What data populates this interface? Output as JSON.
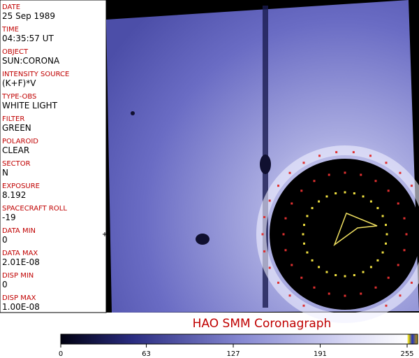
{
  "panel": {
    "fields": [
      {
        "label": "DATE",
        "value": "25 Sep 1989"
      },
      {
        "label": "TIME",
        "value": "04:35:57 UT"
      },
      {
        "label": "OBJECT",
        "value": "SUN:CORONA"
      },
      {
        "label": "INTENSITY SOURCE",
        "value": "(K+F)*V"
      },
      {
        "label": "TYPE-OBS",
        "value": "WHITE LIGHT"
      },
      {
        "label": "FILTER",
        "value": "GREEN"
      },
      {
        "label": "POLAROID",
        "value": "CLEAR"
      },
      {
        "label": "SECTOR",
        "value": "N"
      },
      {
        "label": "EXPOSURE",
        "value": "8.192"
      },
      {
        "label": "SPACECRAFT ROLL",
        "value": "-19"
      },
      {
        "label": "DATA MIN",
        "value": "0"
      },
      {
        "label": "DATA MAX",
        "value": "2.01E-08"
      },
      {
        "label": "DISP MIN",
        "value": "0"
      },
      {
        "label": "DISP MAX",
        "value": "1.00E-08"
      }
    ]
  },
  "title": "HAO  SMM Coronagraph",
  "colorbar": {
    "lim": [
      0,
      255
    ],
    "ticks": [
      0,
      63,
      127,
      191,
      255
    ]
  }
}
